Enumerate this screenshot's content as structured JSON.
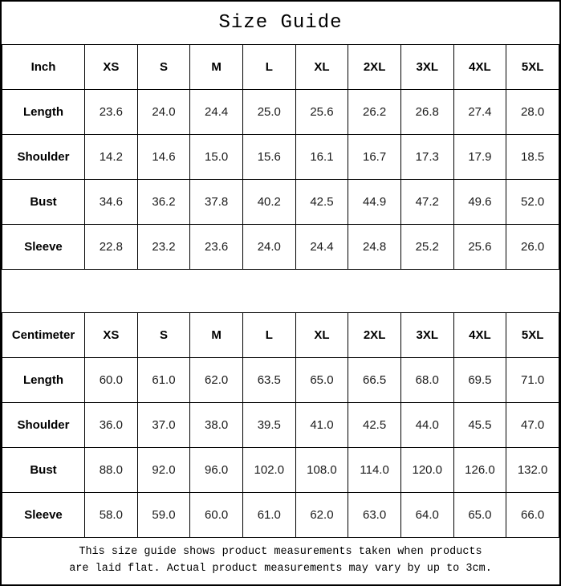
{
  "title": "Size Guide",
  "colors": {
    "border": "#000000",
    "background": "#ffffff",
    "text": "#000000"
  },
  "tables": [
    {
      "unit_label": "Inch",
      "sizes": [
        "XS",
        "S",
        "M",
        "L",
        "XL",
        "2XL",
        "3XL",
        "4XL",
        "5XL"
      ],
      "rows": [
        {
          "label": "Length",
          "values": [
            "23.6",
            "24.0",
            "24.4",
            "25.0",
            "25.6",
            "26.2",
            "26.8",
            "27.4",
            "28.0"
          ]
        },
        {
          "label": "Shoulder",
          "values": [
            "14.2",
            "14.6",
            "15.0",
            "15.6",
            "16.1",
            "16.7",
            "17.3",
            "17.9",
            "18.5"
          ]
        },
        {
          "label": "Bust",
          "values": [
            "34.6",
            "36.2",
            "37.8",
            "40.2",
            "42.5",
            "44.9",
            "47.2",
            "49.6",
            "52.0"
          ]
        },
        {
          "label": "Sleeve",
          "values": [
            "22.8",
            "23.2",
            "23.6",
            "24.0",
            "24.4",
            "24.8",
            "25.2",
            "25.6",
            "26.0"
          ]
        }
      ]
    },
    {
      "unit_label": "Centimeter",
      "sizes": [
        "XS",
        "S",
        "M",
        "L",
        "XL",
        "2XL",
        "3XL",
        "4XL",
        "5XL"
      ],
      "rows": [
        {
          "label": "Length",
          "values": [
            "60.0",
            "61.0",
            "62.0",
            "63.5",
            "65.0",
            "66.5",
            "68.0",
            "69.5",
            "71.0"
          ]
        },
        {
          "label": "Shoulder",
          "values": [
            "36.0",
            "37.0",
            "38.0",
            "39.5",
            "41.0",
            "42.5",
            "44.0",
            "45.5",
            "47.0"
          ]
        },
        {
          "label": "Bust",
          "values": [
            "88.0",
            "92.0",
            "96.0",
            "102.0",
            "108.0",
            "114.0",
            "120.0",
            "126.0",
            "132.0"
          ]
        },
        {
          "label": "Sleeve",
          "values": [
            "58.0",
            "59.0",
            "60.0",
            "61.0",
            "62.0",
            "63.0",
            "64.0",
            "65.0",
            "66.0"
          ]
        }
      ]
    }
  ],
  "footer_note": {
    "line1": "This size guide shows product measurements taken when products",
    "line2": "are laid flat. Actual product measurements may vary by up to 3cm."
  }
}
